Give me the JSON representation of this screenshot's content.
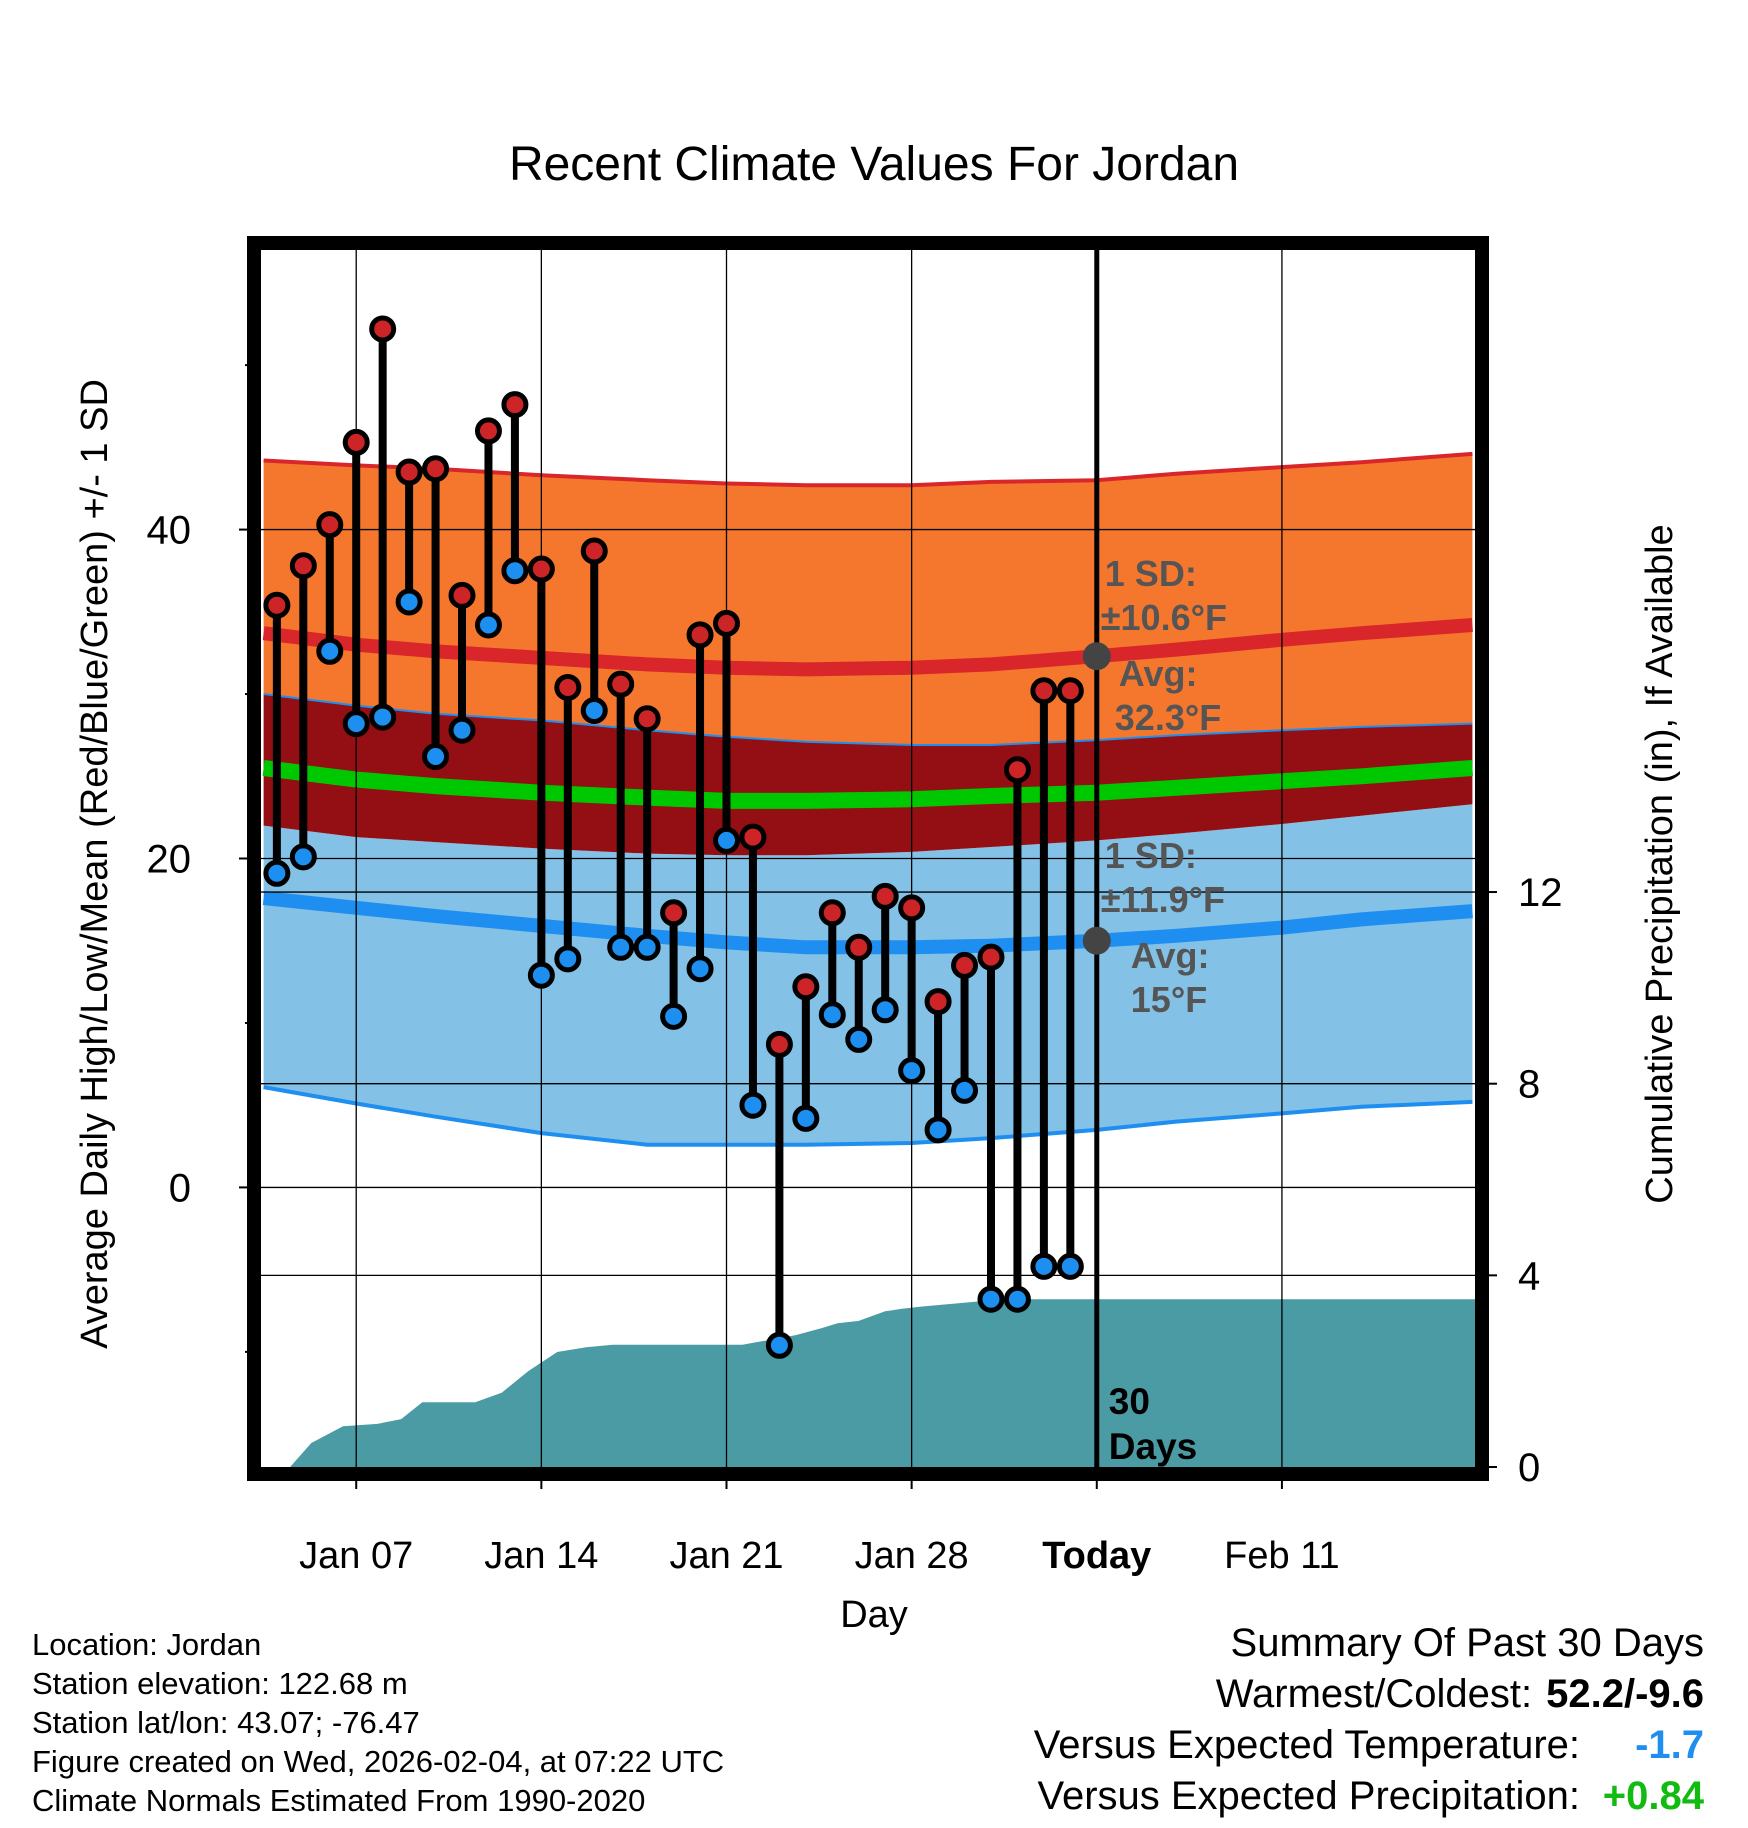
{
  "chart_data": {
    "type": "line",
    "title": "Recent Climate Values For Jordan",
    "xlabel": "Day",
    "ylabel": "Average Daily High/Low/Mean (Red/Blue/Green) +/- 1 SD",
    "y2label": "Cumulative Precipitation (in), If Available",
    "xlim": [
      3.4,
      49.3
    ],
    "ylim": [
      -17,
      57
    ],
    "y2lim": [
      0,
      25.4
    ],
    "x_ticks": [
      {
        "x": 7,
        "label": "Jan 07"
      },
      {
        "x": 14,
        "label": "Jan 14"
      },
      {
        "x": 21,
        "label": "Jan 21"
      },
      {
        "x": 28,
        "label": "Jan 28"
      },
      {
        "x": 35,
        "label": "Today"
      },
      {
        "x": 42,
        "label": "Feb 11"
      }
    ],
    "y_ticks": [
      0,
      20,
      40
    ],
    "y_minor_ticks": [
      -10,
      10,
      30,
      50
    ],
    "y2_ticks": [
      0,
      4,
      8,
      12
    ],
    "today_x": 35,
    "today_label_line1": "30",
    "today_label_line2": "Days",
    "normals_x": [
      3.5,
      7,
      10,
      14,
      18,
      21,
      24,
      28,
      31,
      35,
      38,
      42,
      45,
      49.2
    ],
    "normal_high_upper": [
      44.2,
      43.9,
      43.7,
      43.3,
      43.0,
      42.8,
      42.7,
      42.7,
      42.9,
      43.0,
      43.4,
      43.8,
      44.1,
      44.6
    ],
    "normal_high": [
      33.7,
      33.0,
      32.6,
      32.2,
      31.8,
      31.6,
      31.5,
      31.6,
      31.8,
      32.3,
      32.7,
      33.3,
      33.7,
      34.2
    ],
    "normal_high_lower": [
      30.0,
      29.3,
      28.8,
      28.4,
      27.8,
      27.4,
      27.1,
      26.9,
      26.9,
      27.2,
      27.5,
      27.8,
      28.0,
      28.2
    ],
    "normal_mean": [
      25.5,
      24.8,
      24.4,
      24.0,
      23.7,
      23.5,
      23.5,
      23.6,
      23.8,
      24.0,
      24.3,
      24.7,
      25.0,
      25.5
    ],
    "normal_low_upper": [
      22.0,
      21.3,
      21.0,
      20.6,
      20.3,
      20.2,
      20.2,
      20.4,
      20.7,
      21.1,
      21.5,
      22.1,
      22.6,
      23.3
    ],
    "normal_low": [
      17.6,
      17.0,
      16.5,
      15.9,
      15.3,
      14.9,
      14.6,
      14.6,
      14.7,
      15.0,
      15.3,
      15.8,
      16.3,
      16.8
    ],
    "normal_low_lower": [
      6.1,
      5.1,
      4.3,
      3.3,
      2.6,
      2.6,
      2.6,
      2.7,
      3.0,
      3.5,
      4.0,
      4.5,
      4.9,
      5.2
    ],
    "days_x": [
      4,
      5,
      6,
      7,
      8,
      9,
      10,
      11,
      12,
      13,
      14,
      15,
      16,
      17,
      18,
      19,
      20,
      21,
      22,
      23,
      24,
      25,
      26,
      27,
      28,
      29,
      30,
      31,
      32,
      33,
      34
    ],
    "highs": [
      35.4,
      37.8,
      40.3,
      45.3,
      52.2,
      43.5,
      43.7,
      36.0,
      46.0,
      47.6,
      37.6,
      30.4,
      38.7,
      30.6,
      28.5,
      16.7,
      33.6,
      34.3,
      21.3,
      8.7,
      12.2,
      16.7,
      14.6,
      17.7,
      17.0,
      11.3,
      13.5,
      14.0,
      25.4,
      30.2,
      30.2
    ],
    "lows": [
      19.1,
      20.1,
      32.6,
      28.2,
      28.6,
      35.6,
      26.2,
      27.8,
      34.2,
      37.5,
      12.9,
      13.9,
      29.0,
      14.6,
      14.6,
      10.4,
      13.3,
      21.1,
      5.0,
      -9.6,
      4.2,
      10.5,
      9.0,
      10.8,
      7.1,
      3.5,
      5.9,
      -6.8,
      -6.8,
      -4.8,
      -4.8
    ],
    "precip_x": [
      4.5,
      5.3,
      6.5,
      7.8,
      8.7,
      9.5,
      10.5,
      11.5,
      12.5,
      13.5,
      14.6,
      15.7,
      16.7,
      17.6,
      18.6,
      19.6,
      20.6,
      21.6,
      22.6,
      23.6,
      24.6,
      25.2,
      26.0,
      27.0,
      27.6,
      28.4,
      29.4,
      30.4,
      31.4,
      32.4,
      33.6,
      35.0,
      49.3
    ],
    "precip": [
      0.0,
      0.5,
      0.85,
      0.9,
      1.0,
      1.35,
      1.35,
      1.35,
      1.55,
      2.0,
      2.4,
      2.5,
      2.55,
      2.55,
      2.55,
      2.55,
      2.55,
      2.55,
      2.65,
      2.75,
      2.9,
      3.0,
      3.05,
      3.25,
      3.3,
      3.35,
      3.4,
      3.45,
      3.5,
      3.5,
      3.5,
      3.5,
      3.5
    ],
    "annotations": {
      "high_sd_line1": "1 SD:",
      "high_sd_line2": "±10.6°F",
      "high_avg_line1": "Avg:",
      "high_avg_line2": "32.3°F",
      "high_avg_value": 32.3,
      "low_sd_line1": "1 SD:",
      "low_sd_line2": "±11.9°F",
      "low_avg_line1": "Avg:",
      "low_avg_line2": "15°F",
      "low_avg_value": 15
    },
    "colors": {
      "high_band": "#f5772e",
      "high_line": "#d8262a",
      "overlap_band": "#930f14",
      "mean_line": "#00c800",
      "low_band": "#83c1e6",
      "low_line": "#1e8ff0",
      "precip": "#4a9ba3",
      "high_dot": "#cd2527",
      "low_dot": "#1c8ff0",
      "annotation": "#555555"
    }
  },
  "footer": {
    "location": "Location: Jordan",
    "elevation": "Station elevation: 122.68 m",
    "latlon": "Station lat/lon: 43.07; -76.47",
    "created": "Figure created on Wed, 2026-02-04, at 07:22 UTC",
    "normals": "Climate Normals Estimated From 1990-2020"
  },
  "summary": {
    "title": "Summary Of Past 30 Days",
    "warmest_label": "Warmest/Coldest:",
    "warmest_value": "52.2/-9.6",
    "temp_label": "Versus Expected Temperature:",
    "temp_value": "-1.7",
    "temp_color": "#1e8ff0",
    "precip_label": "Versus Expected Precipitation:",
    "precip_value": "+0.84",
    "precip_color": "#11bb11"
  }
}
